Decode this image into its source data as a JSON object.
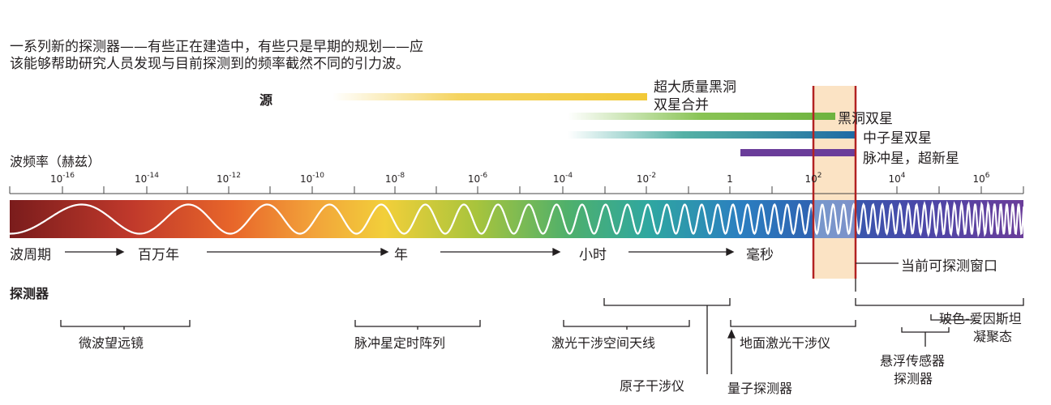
{
  "intro": {
    "line1": "一系列新的探测器——有些正在建造中，有些只是早期的规划——应",
    "line2": "该能够帮助研究人员发现与目前探测到的频率截然不同的引力波。"
  },
  "sources": {
    "heading": "源",
    "items": [
      {
        "label": "超大质量黑洞",
        "color": "#f2c938"
      },
      {
        "label": "双星合并",
        "color": "#f2c938"
      },
      {
        "label": "黑洞双星",
        "color": "#7cbd42"
      },
      {
        "label": "中子星双星",
        "color": "#1d6aa6"
      },
      {
        "label": "脉冲星，超新星",
        "color": "#6a3d9a"
      }
    ]
  },
  "frequency": {
    "heading": "波频率（赫兹）",
    "ticks": [
      {
        "base": "10",
        "exp": "-16"
      },
      {
        "base": "10",
        "exp": "-14"
      },
      {
        "base": "10",
        "exp": "-12"
      },
      {
        "base": "10",
        "exp": "-10"
      },
      {
        "base": "10",
        "exp": "-8"
      },
      {
        "base": "10",
        "exp": "-6"
      },
      {
        "base": "10",
        "exp": "-4"
      },
      {
        "base": "10",
        "exp": "-2"
      },
      {
        "base": "1",
        "exp": ""
      },
      {
        "base": "10",
        "exp": "2"
      },
      {
        "base": "10",
        "exp": "4"
      },
      {
        "base": "10",
        "exp": "6"
      }
    ]
  },
  "period": {
    "heading": "波周期",
    "labels": [
      "百万年",
      "年",
      "小时",
      "毫秒"
    ]
  },
  "window_label": "当前可探测窗口",
  "detectors": {
    "heading": "探测器",
    "items": [
      "微波望远镜",
      "脉冲星定时阵列",
      "激光干涉空间天线",
      "原子干涉仪",
      "地面激光干涉仪",
      "量子探测器",
      "玻色-爱因斯坦",
      "凝聚态",
      "悬浮传感器",
      "探测器"
    ]
  },
  "colors": {
    "window_fill": "#fbe3c4",
    "window_border": "#b22222",
    "spectrum_start": "#8b1e1e",
    "spectrum_end": "#6a3d9a"
  }
}
